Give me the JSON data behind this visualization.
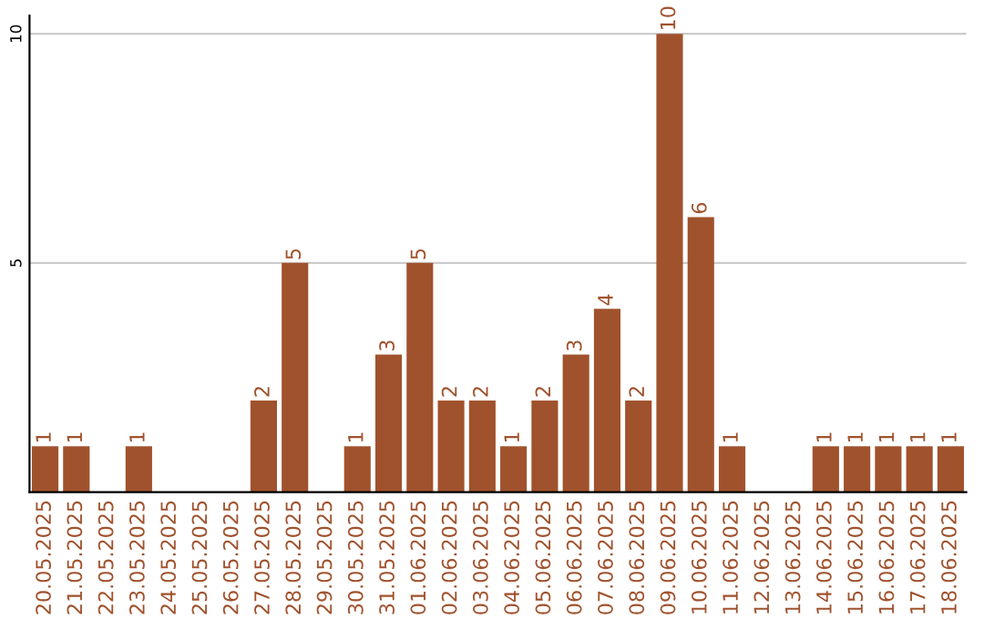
{
  "chart_data": {
    "type": "bar",
    "categories": [
      "20.05.2025",
      "21.05.2025",
      "22.05.2025",
      "23.05.2025",
      "24.05.2025",
      "25.05.2025",
      "26.05.2025",
      "27.05.2025",
      "28.05.2025",
      "29.05.2025",
      "30.05.2025",
      "31.05.2025",
      "01.06.2025",
      "02.06.2025",
      "03.06.2025",
      "04.06.2025",
      "05.06.2025",
      "06.06.2025",
      "07.06.2025",
      "08.06.2025",
      "09.06.2025",
      "10.06.2025",
      "11.06.2025",
      "12.06.2025",
      "13.06.2025",
      "14.06.2025",
      "15.06.2025",
      "16.06.2025",
      "17.06.2025",
      "18.06.2025"
    ],
    "values": [
      1,
      1,
      0,
      1,
      0,
      0,
      0,
      2,
      5,
      0,
      1,
      3,
      5,
      2,
      2,
      1,
      2,
      3,
      4,
      2,
      10,
      6,
      1,
      0,
      0,
      1,
      1,
      1,
      1,
      1
    ],
    "value_labels": [
      "1",
      "1",
      null,
      "1",
      null,
      null,
      null,
      "2",
      "5",
      null,
      "1",
      "3",
      "5",
      "2",
      "2",
      "1",
      "2",
      "3",
      "4",
      "2",
      "10",
      "6",
      "1",
      null,
      null,
      "1",
      "1",
      "1",
      "1",
      "1"
    ],
    "color": "#a0522d",
    "ylim": [
      0,
      10.4
    ],
    "yticks": [
      5,
      10
    ],
    "grid": "y"
  }
}
